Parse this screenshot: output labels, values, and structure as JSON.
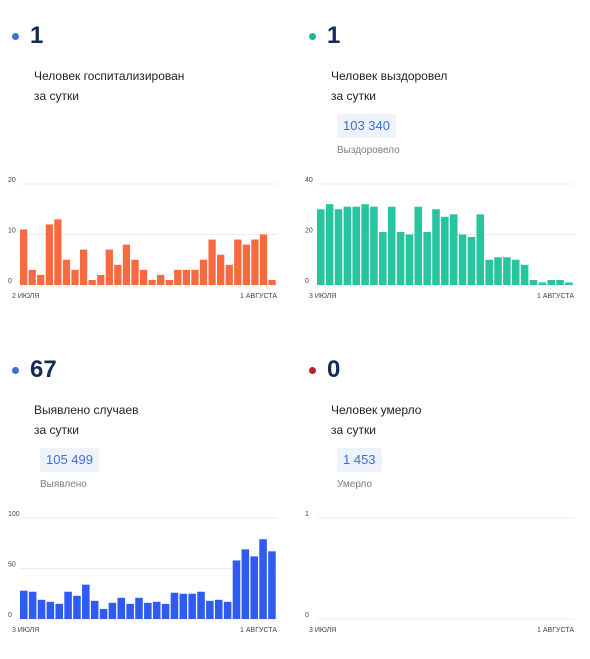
{
  "chart_data": [
    {
      "type": "bar",
      "dot_color": "#3d6fd9",
      "bar_color": "#f56a3f",
      "value": "1",
      "caption_lines": [
        "Человек госпитализирован",
        "за сутки"
      ],
      "total": "",
      "total_label": "",
      "ylim": [
        0,
        20
      ],
      "yticks": [
        "0",
        "10",
        "20"
      ],
      "x_start": "2 ИЮЛЯ",
      "x_end": "1 АВГУСТА",
      "values": [
        11,
        3,
        2,
        12,
        13,
        5,
        3,
        7,
        1,
        2,
        7,
        4,
        8,
        5,
        3,
        1,
        2,
        1,
        3,
        3,
        3,
        5,
        9,
        6,
        4,
        9,
        8,
        9,
        10,
        1
      ]
    },
    {
      "type": "bar",
      "dot_color": "#1fb594",
      "bar_color": "#27c59f",
      "value": "1",
      "caption_lines": [
        "Человек выздоровел",
        "за сутки"
      ],
      "total": "103 340",
      "total_label": "Выздоровело",
      "ylim": [
        0,
        40
      ],
      "yticks": [
        "0",
        "20",
        "40"
      ],
      "x_start": "3 ИЮЛЯ",
      "x_end": "1 АВГУСТА",
      "values": [
        30,
        32,
        30,
        31,
        31,
        32,
        31,
        21,
        31,
        21,
        20,
        31,
        21,
        30,
        27,
        28,
        20,
        19,
        28,
        10,
        11,
        11,
        10,
        8,
        2,
        1,
        2,
        2,
        1
      ]
    },
    {
      "type": "bar",
      "dot_color": "#3d6fd9",
      "bar_color": "#2f5bf1",
      "value": "67",
      "caption_lines": [
        "Выявлено случаев",
        "за сутки"
      ],
      "total": "105 499",
      "total_label": "Выявлено",
      "ylim": [
        0,
        100
      ],
      "yticks": [
        "0",
        "50",
        "100"
      ],
      "x_start": "3 ИЮЛЯ",
      "x_end": "1 АВГУСТА",
      "values": [
        28,
        27,
        19,
        17,
        15,
        27,
        23,
        34,
        18,
        10,
        16,
        21,
        15,
        21,
        16,
        17,
        15,
        26,
        25,
        25,
        27,
        18,
        19,
        17,
        58,
        69,
        62,
        79,
        67
      ]
    },
    {
      "type": "bar",
      "dot_color": "#b92127",
      "bar_color": "#b92127",
      "value": "0",
      "caption_lines": [
        "Человек умерло",
        "за сутки"
      ],
      "total": "1 453",
      "total_label": "Умерло",
      "ylim": [
        0,
        1
      ],
      "yticks": [
        "0",
        "1"
      ],
      "x_start": "3 ИЮЛЯ",
      "x_end": "1 АВГУСТА",
      "values": [
        0,
        0,
        0,
        0,
        0,
        0,
        0,
        0,
        0,
        0,
        0,
        0,
        0,
        0,
        0,
        0,
        0,
        0,
        0,
        0,
        0,
        0,
        0,
        0,
        0,
        0,
        0,
        0,
        0
      ]
    }
  ]
}
